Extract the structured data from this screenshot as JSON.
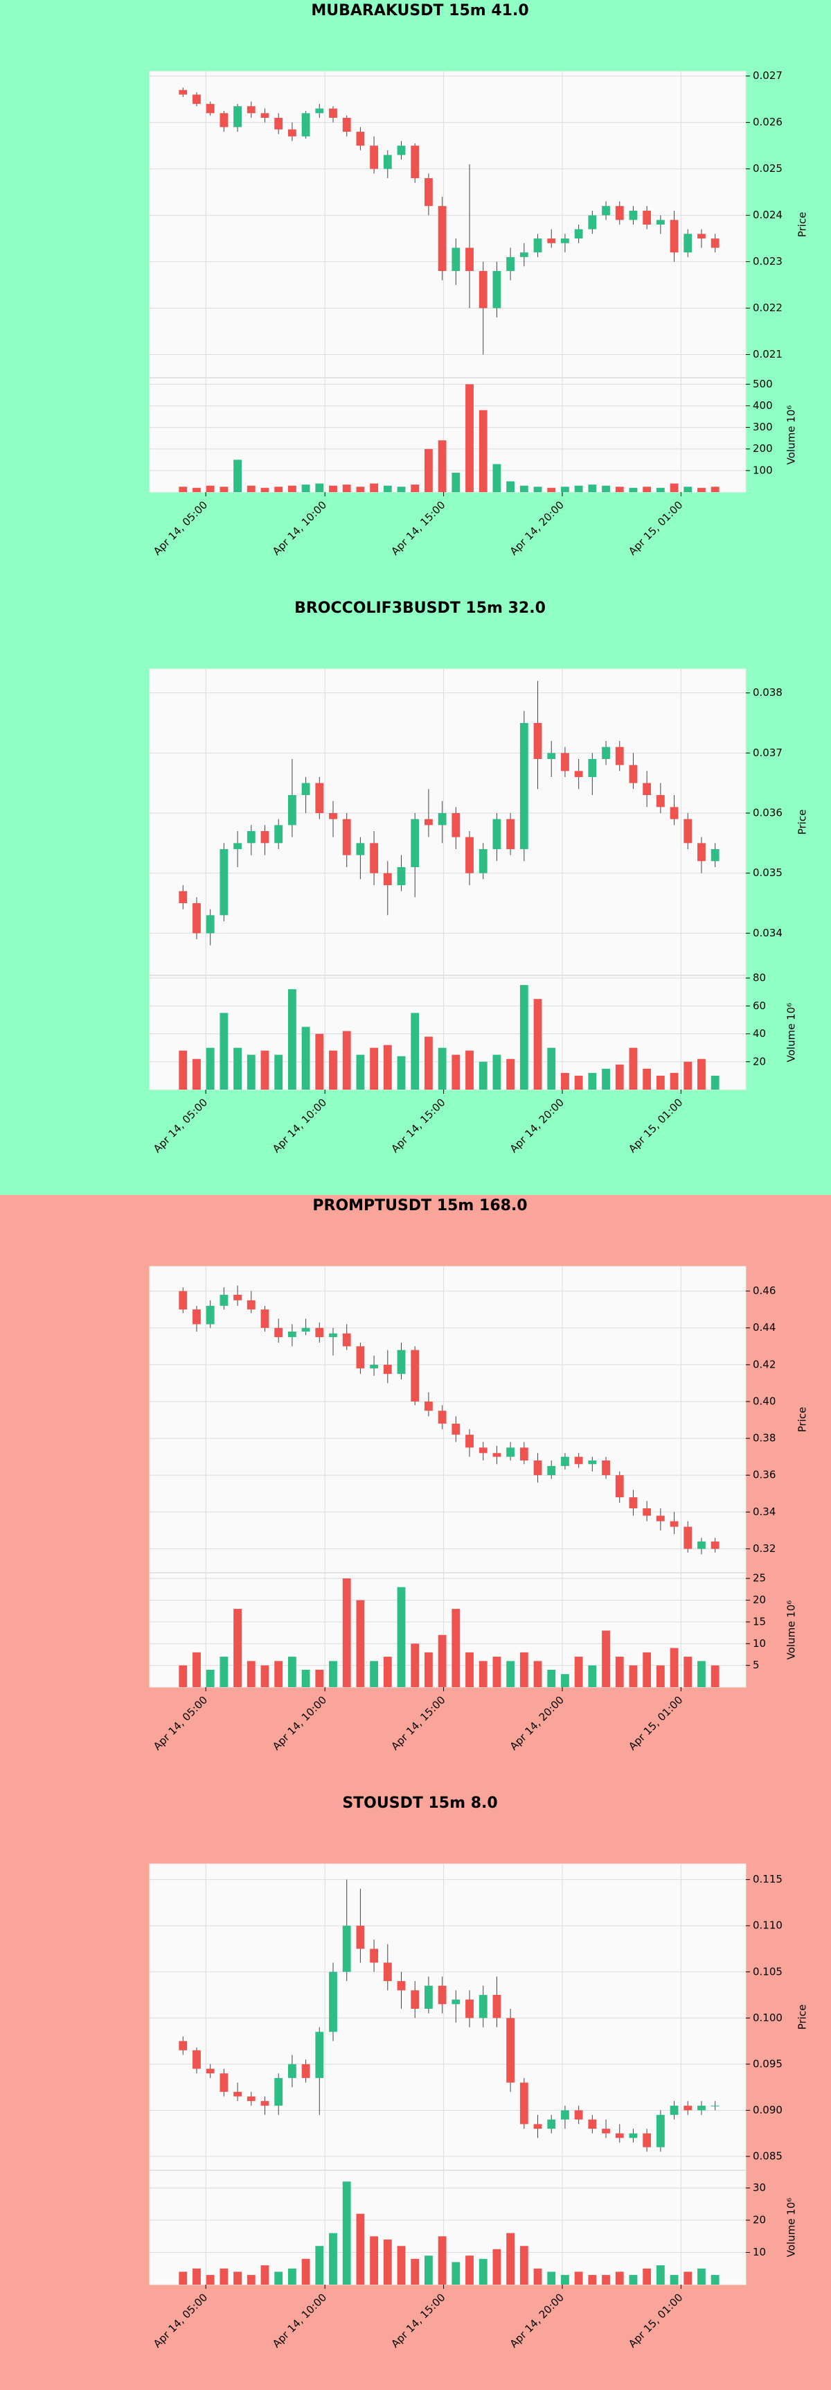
{
  "chart_data": [
    {
      "type": "candlestick",
      "title": "MUBARAKUSDT 15m 41.0",
      "background": "#90ffc4",
      "up_color": "#2ebd85",
      "down_color": "#ef5350",
      "y_label": "Price",
      "volume_label": "Volume  10⁶",
      "xlim": [
        -2.45,
        41.25
      ],
      "xticks": [
        {
          "value": 1.67,
          "label": "Apr 14, 05:00"
        },
        {
          "value": 10.4,
          "label": "Apr 14, 10:00"
        },
        {
          "value": 19.1,
          "label": "Apr 14, 15:00"
        },
        {
          "value": 27.8,
          "label": "Apr 14, 20:00"
        },
        {
          "value": 36.5,
          "label": "Apr 15, 01:00"
        }
      ],
      "ylim": [
        0.0205,
        0.0271
      ],
      "yticks": [
        0.021,
        0.022,
        0.023,
        0.024,
        0.025,
        0.026,
        0.027
      ],
      "volume_ylim": [
        0,
        530
      ],
      "volume_yticks": [
        100,
        200,
        300,
        400,
        500
      ],
      "open": [
        0.0267,
        0.0266,
        0.0264,
        0.0262,
        0.0259,
        0.02635,
        0.0262,
        0.0261,
        0.02585,
        0.0257,
        0.0262,
        0.0263,
        0.0261,
        0.0258,
        0.0255,
        0.025,
        0.0253,
        0.0255,
        0.0248,
        0.0242,
        0.0228,
        0.0233,
        0.0228,
        0.022,
        0.0228,
        0.0231,
        0.0232,
        0.0235,
        0.0234,
        0.0235,
        0.0237,
        0.024,
        0.0242,
        0.0239,
        0.0241,
        0.0238,
        0.0239,
        0.0232,
        0.0236,
        0.0235
      ],
      "high": [
        0.02675,
        0.02665,
        0.02645,
        0.02625,
        0.0264,
        0.02645,
        0.0263,
        0.0262,
        0.026,
        0.02625,
        0.0264,
        0.02635,
        0.02615,
        0.0259,
        0.0257,
        0.0254,
        0.0256,
        0.02555,
        0.0249,
        0.0244,
        0.0235,
        0.0251,
        0.023,
        0.023,
        0.0233,
        0.0234,
        0.0236,
        0.0237,
        0.0236,
        0.0238,
        0.0241,
        0.0243,
        0.0243,
        0.0242,
        0.0242,
        0.024,
        0.0241,
        0.0237,
        0.0237,
        0.0236
      ],
      "low": [
        0.02655,
        0.02635,
        0.02615,
        0.0258,
        0.0258,
        0.0261,
        0.026,
        0.02575,
        0.0256,
        0.02565,
        0.0261,
        0.026,
        0.0257,
        0.0254,
        0.0249,
        0.0248,
        0.0252,
        0.0247,
        0.024,
        0.0226,
        0.0225,
        0.022,
        0.021,
        0.0218,
        0.0226,
        0.0229,
        0.0231,
        0.0233,
        0.0232,
        0.0234,
        0.0236,
        0.0239,
        0.0238,
        0.0238,
        0.0237,
        0.0236,
        0.023,
        0.0231,
        0.0233,
        0.0232
      ],
      "close": [
        0.0266,
        0.0264,
        0.0262,
        0.0259,
        0.02635,
        0.0262,
        0.0261,
        0.02585,
        0.0257,
        0.0262,
        0.0263,
        0.0261,
        0.0258,
        0.0255,
        0.025,
        0.0253,
        0.0255,
        0.0248,
        0.0242,
        0.0228,
        0.0233,
        0.0228,
        0.022,
        0.0228,
        0.0231,
        0.0232,
        0.0235,
        0.0234,
        0.0235,
        0.0237,
        0.024,
        0.0242,
        0.0239,
        0.0241,
        0.0238,
        0.0239,
        0.0232,
        0.0236,
        0.0235,
        0.0233
      ],
      "volume": [
        25,
        20,
        30,
        25,
        150,
        30,
        20,
        25,
        30,
        35,
        40,
        30,
        35,
        25,
        40,
        30,
        25,
        35,
        200,
        240,
        90,
        500,
        380,
        130,
        50,
        30,
        25,
        20,
        25,
        30,
        35,
        30,
        25,
        20,
        25,
        20,
        40,
        25,
        20,
        25
      ]
    },
    {
      "type": "candlestick",
      "title": "BROCCOLIF3BUSDT 15m 32.0",
      "background": "#90ffc4",
      "up_color": "#2ebd85",
      "down_color": "#ef5350",
      "y_label": "Price",
      "volume_label": "Volume  10⁶",
      "xlim": [
        -2.45,
        41.25
      ],
      "xticks": [
        {
          "value": 1.67,
          "label": "Apr 14, 05:00"
        },
        {
          "value": 10.4,
          "label": "Apr 14, 10:00"
        },
        {
          "value": 19.1,
          "label": "Apr 14, 15:00"
        },
        {
          "value": 27.8,
          "label": "Apr 14, 20:00"
        },
        {
          "value": 36.5,
          "label": "Apr 15, 01:00"
        }
      ],
      "ylim": [
        0.0333,
        0.0384
      ],
      "yticks": [
        0.034,
        0.035,
        0.036,
        0.037,
        0.038
      ],
      "volume_ylim": [
        0,
        82
      ],
      "volume_yticks": [
        20,
        40,
        60,
        80
      ],
      "open": [
        0.0347,
        0.0345,
        0.034,
        0.0343,
        0.0354,
        0.0355,
        0.0357,
        0.0355,
        0.0358,
        0.0363,
        0.0365,
        0.036,
        0.0359,
        0.0353,
        0.0355,
        0.035,
        0.0348,
        0.0351,
        0.0359,
        0.0358,
        0.036,
        0.0356,
        0.035,
        0.0354,
        0.0359,
        0.0354,
        0.0375,
        0.0369,
        0.037,
        0.0367,
        0.0366,
        0.0369,
        0.0371,
        0.0368,
        0.0365,
        0.0363,
        0.0361,
        0.0359,
        0.0355,
        0.0352
      ],
      "high": [
        0.0348,
        0.0346,
        0.0344,
        0.0355,
        0.0357,
        0.0358,
        0.0358,
        0.0359,
        0.0369,
        0.0366,
        0.0366,
        0.0362,
        0.036,
        0.0356,
        0.0357,
        0.0352,
        0.0353,
        0.036,
        0.0364,
        0.0362,
        0.0361,
        0.0357,
        0.0355,
        0.036,
        0.036,
        0.0377,
        0.0382,
        0.0372,
        0.0371,
        0.0369,
        0.037,
        0.0372,
        0.0372,
        0.037,
        0.0367,
        0.0365,
        0.0363,
        0.036,
        0.0356,
        0.0355
      ],
      "low": [
        0.0344,
        0.0339,
        0.0338,
        0.0342,
        0.0351,
        0.0353,
        0.0353,
        0.0354,
        0.0356,
        0.036,
        0.0359,
        0.0356,
        0.0351,
        0.0349,
        0.0348,
        0.0343,
        0.0347,
        0.0346,
        0.0356,
        0.0355,
        0.0354,
        0.0348,
        0.0349,
        0.0352,
        0.0353,
        0.0352,
        0.0364,
        0.0366,
        0.0366,
        0.0364,
        0.0363,
        0.0368,
        0.0367,
        0.0364,
        0.0361,
        0.036,
        0.0358,
        0.0354,
        0.035,
        0.0351
      ],
      "close": [
        0.0345,
        0.034,
        0.0343,
        0.0354,
        0.0355,
        0.0357,
        0.0355,
        0.0358,
        0.0363,
        0.0365,
        0.036,
        0.0359,
        0.0353,
        0.0355,
        0.035,
        0.0348,
        0.0351,
        0.0359,
        0.0358,
        0.036,
        0.0356,
        0.035,
        0.0354,
        0.0359,
        0.0354,
        0.0375,
        0.0369,
        0.037,
        0.0367,
        0.0366,
        0.0369,
        0.0371,
        0.0368,
        0.0365,
        0.0363,
        0.0361,
        0.0359,
        0.0355,
        0.0352,
        0.0354
      ],
      "volume": [
        28,
        22,
        30,
        55,
        30,
        25,
        28,
        25,
        72,
        45,
        40,
        28,
        42,
        25,
        30,
        32,
        24,
        55,
        38,
        30,
        25,
        28,
        20,
        25,
        22,
        75,
        65,
        30,
        12,
        10,
        12,
        15,
        18,
        30,
        15,
        10,
        12,
        20,
        22,
        10
      ]
    },
    {
      "type": "candlestick",
      "title": "PROMPTUSDT 15m 168.0",
      "background": "#f9a59a",
      "up_color": "#2ebd85",
      "down_color": "#ef5350",
      "y_label": "Price",
      "volume_label": "Volume  10⁶",
      "xlim": [
        -2.45,
        41.25
      ],
      "xticks": [
        {
          "value": 1.67,
          "label": "Apr 14, 05:00"
        },
        {
          "value": 10.4,
          "label": "Apr 14, 10:00"
        },
        {
          "value": 19.1,
          "label": "Apr 14, 15:00"
        },
        {
          "value": 27.8,
          "label": "Apr 14, 20:00"
        },
        {
          "value": 36.5,
          "label": "Apr 15, 01:00"
        }
      ],
      "ylim": [
        0.307,
        0.4734
      ],
      "yticks": [
        0.32,
        0.34,
        0.36,
        0.38,
        {
          "value": 0.4,
          "label": "0.40"
        },
        0.42,
        0.44,
        0.46
      ],
      "volume_ylim": [
        0,
        26.3
      ],
      "volume_yticks": [
        5,
        10,
        15,
        20,
        25
      ],
      "open": [
        0.46,
        0.45,
        0.442,
        0.452,
        0.458,
        0.455,
        0.45,
        0.44,
        0.435,
        0.438,
        0.44,
        0.435,
        0.437,
        0.43,
        0.418,
        0.42,
        0.415,
        0.428,
        0.4,
        0.395,
        0.388,
        0.382,
        0.375,
        0.372,
        0.37,
        0.375,
        0.368,
        0.36,
        0.365,
        0.37,
        0.366,
        0.368,
        0.36,
        0.348,
        0.342,
        0.338,
        0.335,
        0.332,
        0.32,
        0.324
      ],
      "high": [
        0.462,
        0.452,
        0.455,
        0.462,
        0.463,
        0.46,
        0.452,
        0.445,
        0.442,
        0.445,
        0.443,
        0.44,
        0.442,
        0.432,
        0.425,
        0.428,
        0.432,
        0.43,
        0.405,
        0.398,
        0.392,
        0.385,
        0.378,
        0.376,
        0.378,
        0.378,
        0.372,
        0.368,
        0.372,
        0.372,
        0.37,
        0.37,
        0.362,
        0.352,
        0.346,
        0.342,
        0.34,
        0.335,
        0.326,
        0.326
      ],
      "low": [
        0.448,
        0.438,
        0.44,
        0.45,
        0.452,
        0.448,
        0.438,
        0.432,
        0.43,
        0.436,
        0.432,
        0.425,
        0.428,
        0.415,
        0.414,
        0.41,
        0.412,
        0.398,
        0.392,
        0.385,
        0.378,
        0.37,
        0.368,
        0.366,
        0.368,
        0.366,
        0.356,
        0.358,
        0.363,
        0.364,
        0.362,
        0.358,
        0.345,
        0.338,
        0.335,
        0.33,
        0.328,
        0.318,
        0.317,
        0.318
      ],
      "close": [
        0.45,
        0.442,
        0.452,
        0.458,
        0.455,
        0.45,
        0.44,
        0.435,
        0.438,
        0.44,
        0.435,
        0.437,
        0.43,
        0.418,
        0.42,
        0.415,
        0.428,
        0.4,
        0.395,
        0.388,
        0.382,
        0.375,
        0.372,
        0.37,
        0.375,
        0.368,
        0.36,
        0.365,
        0.37,
        0.366,
        0.368,
        0.36,
        0.348,
        0.342,
        0.338,
        0.335,
        0.332,
        0.32,
        0.324,
        0.32
      ],
      "volume": [
        5,
        8,
        4,
        7,
        18,
        6,
        5,
        6,
        7,
        4,
        4,
        6,
        25,
        20,
        6,
        7,
        23,
        10,
        8,
        12,
        18,
        8,
        6,
        7,
        6,
        8,
        6,
        4,
        3,
        7,
        5,
        13,
        7,
        5,
        8,
        5,
        9,
        7,
        6,
        5
      ]
    },
    {
      "type": "candlestick",
      "title": "STOUSDT 15m 8.0",
      "background": "#f9a59a",
      "up_color": "#2ebd85",
      "down_color": "#ef5350",
      "y_label": "Price",
      "volume_label": "Volume  10⁶",
      "xlim": [
        -2.45,
        41.25
      ],
      "xticks": [
        {
          "value": 1.67,
          "label": "Apr 14, 05:00"
        },
        {
          "value": 10.4,
          "label": "Apr 14, 10:00"
        },
        {
          "value": 19.1,
          "label": "Apr 14, 15:00"
        },
        {
          "value": 27.8,
          "label": "Apr 14, 20:00"
        },
        {
          "value": 36.5,
          "label": "Apr 15, 01:00"
        }
      ],
      "ylim": [
        0.0835,
        0.1167
      ],
      "yticks": [
        0.085,
        {
          "value": 0.09,
          "label": "0.090"
        },
        0.095,
        {
          "value": 0.1,
          "label": "0.100"
        },
        0.105,
        {
          "value": 0.11,
          "label": "0.110"
        },
        0.115
      ],
      "volume_ylim": [
        0,
        35.5
      ],
      "volume_yticks": [
        10,
        20,
        30
      ],
      "open": [
        0.0975,
        0.0965,
        0.0945,
        0.094,
        0.092,
        0.0915,
        0.091,
        0.0905,
        0.0935,
        0.095,
        0.0935,
        0.0985,
        0.105,
        0.11,
        0.1075,
        0.106,
        0.104,
        0.103,
        0.101,
        0.1035,
        0.1015,
        0.102,
        0.1,
        0.1025,
        0.1,
        0.093,
        0.0885,
        0.088,
        0.089,
        0.09,
        0.089,
        0.088,
        0.0875,
        0.087,
        0.0875,
        0.086,
        0.0895,
        0.0905,
        0.09,
        0.0905
      ],
      "high": [
        0.098,
        0.0968,
        0.095,
        0.0945,
        0.093,
        0.092,
        0.0915,
        0.094,
        0.096,
        0.0955,
        0.099,
        0.106,
        0.115,
        0.114,
        0.1085,
        0.108,
        0.105,
        0.104,
        0.1045,
        0.1045,
        0.103,
        0.103,
        0.1035,
        0.1045,
        0.101,
        0.0935,
        0.0895,
        0.0895,
        0.0905,
        0.0905,
        0.0895,
        0.089,
        0.0885,
        0.088,
        0.088,
        0.09,
        0.091,
        0.091,
        0.091,
        0.091
      ],
      "low": [
        0.096,
        0.094,
        0.0935,
        0.0915,
        0.091,
        0.0905,
        0.0895,
        0.0895,
        0.0925,
        0.093,
        0.0895,
        0.0975,
        0.104,
        0.106,
        0.105,
        0.103,
        0.101,
        0.1,
        0.1005,
        0.1005,
        0.0995,
        0.099,
        0.099,
        0.099,
        0.092,
        0.088,
        0.087,
        0.0875,
        0.088,
        0.0885,
        0.0875,
        0.087,
        0.0865,
        0.0865,
        0.0855,
        0.0855,
        0.089,
        0.0895,
        0.0895,
        0.09
      ],
      "close": [
        0.0965,
        0.0945,
        0.094,
        0.092,
        0.0915,
        0.091,
        0.0905,
        0.0935,
        0.095,
        0.0935,
        0.0985,
        0.105,
        0.11,
        0.1075,
        0.106,
        0.104,
        0.103,
        0.101,
        0.1035,
        0.1015,
        0.102,
        0.1,
        0.1025,
        0.1,
        0.093,
        0.0885,
        0.088,
        0.089,
        0.09,
        0.089,
        0.088,
        0.0875,
        0.087,
        0.0875,
        0.086,
        0.0895,
        0.0905,
        0.09,
        0.0905,
        0.0905
      ],
      "volume": [
        4,
        5,
        3,
        5,
        4,
        3,
        6,
        4,
        5,
        8,
        12,
        16,
        32,
        22,
        15,
        14,
        12,
        8,
        9,
        15,
        7,
        9,
        8,
        11,
        16,
        12,
        5,
        4,
        3,
        4,
        3,
        3,
        4,
        3,
        5,
        6,
        3,
        4,
        5,
        3
      ]
    }
  ]
}
